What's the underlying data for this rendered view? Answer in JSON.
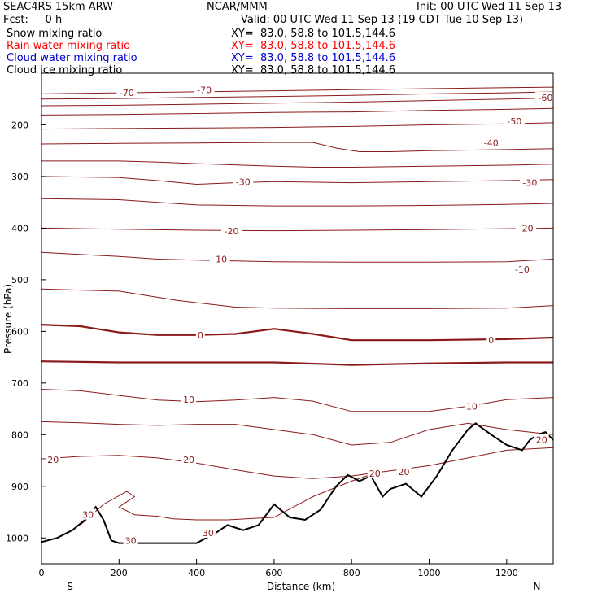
{
  "header": {
    "model": "SEAC4RS 15km ARW",
    "org": "NCAR/MMM",
    "init": "Init: 00 UTC Wed 11 Sep 13",
    "fcst": "Fcst:     0 h",
    "valid": "Valid: 00 UTC Wed 11 Sep 13 (19 CDT Tue 10 Sep 13)"
  },
  "legend": [
    {
      "label": "Snow mixing ratio",
      "xy": "XY=  83.0, 58.8 to 101.5,144.6",
      "color": "#000000"
    },
    {
      "label": "Rain water mixing ratio",
      "xy": "XY=  83.0, 58.8 to 101.5,144.6",
      "color": "#ff0000"
    },
    {
      "label": "Cloud water mixing ratio",
      "xy": "XY=  83.0, 58.8 to 101.5,144.6",
      "color": "#0000cc"
    },
    {
      "label": "Cloud ice mixing ratio",
      "xy": "XY=  83.0, 58.8 to 101.5,144.6",
      "color": "#000000"
    }
  ],
  "chart_data": {
    "type": "line",
    "xlabel": "Distance (km)",
    "ylabel": "Pressure (hPa)",
    "xlim": [
      0,
      1320
    ],
    "ylim": [
      1050,
      100
    ],
    "x_ticks": [
      0,
      200,
      400,
      600,
      800,
      1000,
      1200
    ],
    "y_ticks": [
      200,
      300,
      400,
      500,
      600,
      700,
      800,
      900,
      1000
    ],
    "y_tick_labels": [
      "200",
      "300",
      "400",
      "500",
      "600",
      "700",
      "800",
      "900",
      "1000"
    ],
    "cross_section_ends": {
      "left": "S",
      "right": "N"
    },
    "contour_color": "#8b1a1a",
    "terrain_color": "#000000",
    "series": [
      {
        "level": -70,
        "x": [
          0,
          200,
          400,
          600,
          800,
          1000,
          1200,
          1320
        ],
        "y": [
          140,
          138,
          136,
          134,
          132,
          130,
          128,
          127
        ]
      },
      {
        "level": -60,
        "x": [
          0,
          200,
          400,
          600,
          800,
          1000,
          1200,
          1320
        ],
        "y": [
          150,
          149,
          147,
          145,
          143,
          140,
          138,
          136
        ]
      },
      {
        "level": -60,
        "x": [
          0,
          200,
          400,
          600,
          800,
          1000,
          1200,
          1320
        ],
        "y": [
          163,
          162,
          160,
          158,
          156,
          153,
          150,
          148
        ]
      },
      {
        "level": -50,
        "x": [
          0,
          200,
          400,
          600,
          800,
          1000,
          1200,
          1320
        ],
        "y": [
          181,
          180,
          178,
          176,
          175,
          172,
          170,
          168
        ]
      },
      {
        "level": -50,
        "x": [
          0,
          200,
          400,
          600,
          800,
          1000,
          1200,
          1320
        ],
        "y": [
          208,
          207,
          206,
          205,
          203,
          200,
          198,
          196
        ]
      },
      {
        "level": -40,
        "x": [
          0,
          200,
          400,
          600,
          700,
          760,
          820,
          900,
          1000,
          1200,
          1320
        ],
        "y": [
          237,
          236,
          235,
          234,
          234,
          245,
          252,
          252,
          250,
          248,
          246
        ]
      },
      {
        "level": -40,
        "x": [
          0,
          200,
          300,
          400,
          600,
          700,
          800,
          1000,
          1200,
          1320
        ],
        "y": [
          270,
          270,
          272,
          275,
          280,
          282,
          282,
          280,
          278,
          276
        ]
      },
      {
        "level": -30,
        "x": [
          0,
          200,
          300,
          400,
          500,
          600,
          800,
          1000,
          1200,
          1320
        ],
        "y": [
          300,
          302,
          308,
          315,
          312,
          310,
          312,
          310,
          308,
          306
        ]
      },
      {
        "level": -30,
        "x": [
          0,
          200,
          300,
          400,
          600,
          800,
          1000,
          1200,
          1320
        ],
        "y": [
          343,
          345,
          350,
          355,
          357,
          357,
          356,
          354,
          352
        ]
      },
      {
        "level": -20,
        "x": [
          0,
          200,
          400,
          600,
          800,
          1000,
          1200,
          1320
        ],
        "y": [
          400,
          402,
          404,
          405,
          404,
          403,
          401,
          400
        ]
      },
      {
        "level": -10,
        "x": [
          0,
          200,
          300,
          400,
          600,
          800,
          1000,
          1200,
          1320
        ],
        "y": [
          447,
          455,
          460,
          462,
          465,
          466,
          466,
          465,
          460
        ]
      },
      {
        "level": -10,
        "x": [
          0,
          100,
          200,
          350,
          500,
          600,
          800,
          1000,
          1200,
          1320
        ],
        "y": [
          518,
          520,
          522,
          540,
          553,
          555,
          556,
          556,
          555,
          550
        ]
      },
      {
        "level": 0,
        "x": [
          0,
          100,
          200,
          300,
          400,
          500,
          600,
          700,
          800,
          1000,
          1200,
          1320
        ],
        "y": [
          587,
          590,
          602,
          607,
          607,
          605,
          595,
          605,
          617,
          617,
          615,
          612
        ]
      },
      {
        "level": 0,
        "x": [
          0,
          200,
          400,
          600,
          800,
          1000,
          1200,
          1320
        ],
        "y": [
          658,
          660,
          660,
          660,
          665,
          662,
          660,
          660
        ]
      },
      {
        "level": 10,
        "x": [
          0,
          100,
          200,
          300,
          400,
          500,
          600,
          700,
          800,
          1000,
          1100,
          1200,
          1320
        ],
        "y": [
          712,
          715,
          724,
          733,
          736,
          733,
          728,
          735,
          755,
          755,
          745,
          732,
          728
        ]
      },
      {
        "level": 10,
        "x": [
          0,
          100,
          200,
          300,
          400,
          500,
          600,
          700,
          800,
          900,
          1000,
          1100,
          1200,
          1320
        ],
        "y": [
          775,
          777,
          780,
          782,
          780,
          780,
          790,
          800,
          820,
          815,
          790,
          778,
          790,
          800
        ]
      },
      {
        "level": 20,
        "x": [
          0,
          100,
          200,
          300,
          400,
          500,
          600,
          700,
          800,
          850,
          900,
          1000,
          1100,
          1200,
          1320
        ],
        "y": [
          847,
          842,
          840,
          845,
          855,
          868,
          880,
          885,
          880,
          875,
          870,
          860,
          845,
          830,
          825
        ]
      },
      {
        "level": 30,
        "x": [
          100,
          160,
          220,
          240,
          200,
          240,
          300,
          340,
          400,
          480,
          600,
          700,
          800,
          860
        ],
        "y": [
          975,
          935,
          910,
          920,
          940,
          955,
          958,
          963,
          965,
          965,
          960,
          920,
          890,
          875
        ]
      }
    ],
    "terrain": {
      "x": [
        0,
        40,
        80,
        120,
        140,
        160,
        180,
        200,
        250,
        300,
        350,
        400,
        450,
        480,
        520,
        560,
        600,
        640,
        680,
        720,
        760,
        790,
        820,
        850,
        880,
        900,
        940,
        980,
        1020,
        1060,
        1100,
        1120,
        1160,
        1200,
        1240,
        1260,
        1280,
        1300,
        1320
      ],
      "y": [
        1008,
        1000,
        985,
        960,
        940,
        965,
        1005,
        1010,
        1010,
        1010,
        1010,
        1010,
        990,
        975,
        985,
        975,
        935,
        960,
        965,
        945,
        900,
        878,
        890,
        880,
        920,
        905,
        895,
        920,
        880,
        830,
        790,
        778,
        800,
        820,
        830,
        810,
        800,
        795,
        810
      ]
    },
    "contour_labels": [
      {
        "text": "-70",
        "x": 420,
        "y": 132
      },
      {
        "text": "-70",
        "x": 220,
        "y": 138
      },
      {
        "text": "-60",
        "x": 1300,
        "y": 147
      },
      {
        "text": "-50",
        "x": 1220,
        "y": 193
      },
      {
        "text": "-40",
        "x": 1160,
        "y": 235
      },
      {
        "text": "-30",
        "x": 520,
        "y": 310
      },
      {
        "text": "-30",
        "x": 1260,
        "y": 312
      },
      {
        "text": "-20",
        "x": 490,
        "y": 406
      },
      {
        "text": "-20",
        "x": 1250,
        "y": 400
      },
      {
        "text": "-10",
        "x": 460,
        "y": 460
      },
      {
        "text": "-10",
        "x": 1240,
        "y": 480
      },
      {
        "text": "0",
        "x": 410,
        "y": 607
      },
      {
        "text": "0",
        "x": 1160,
        "y": 617
      },
      {
        "text": "10",
        "x": 380,
        "y": 732
      },
      {
        "text": "10",
        "x": 1110,
        "y": 745
      },
      {
        "text": "20",
        "x": 30,
        "y": 848
      },
      {
        "text": "20",
        "x": 380,
        "y": 848
      },
      {
        "text": "20",
        "x": 860,
        "y": 875
      },
      {
        "text": "20",
        "x": 935,
        "y": 872
      },
      {
        "text": "20",
        "x": 1290,
        "y": 810
      },
      {
        "text": "30",
        "x": 120,
        "y": 955
      },
      {
        "text": "30",
        "x": 230,
        "y": 1005
      },
      {
        "text": "30",
        "x": 430,
        "y": 990
      }
    ]
  }
}
